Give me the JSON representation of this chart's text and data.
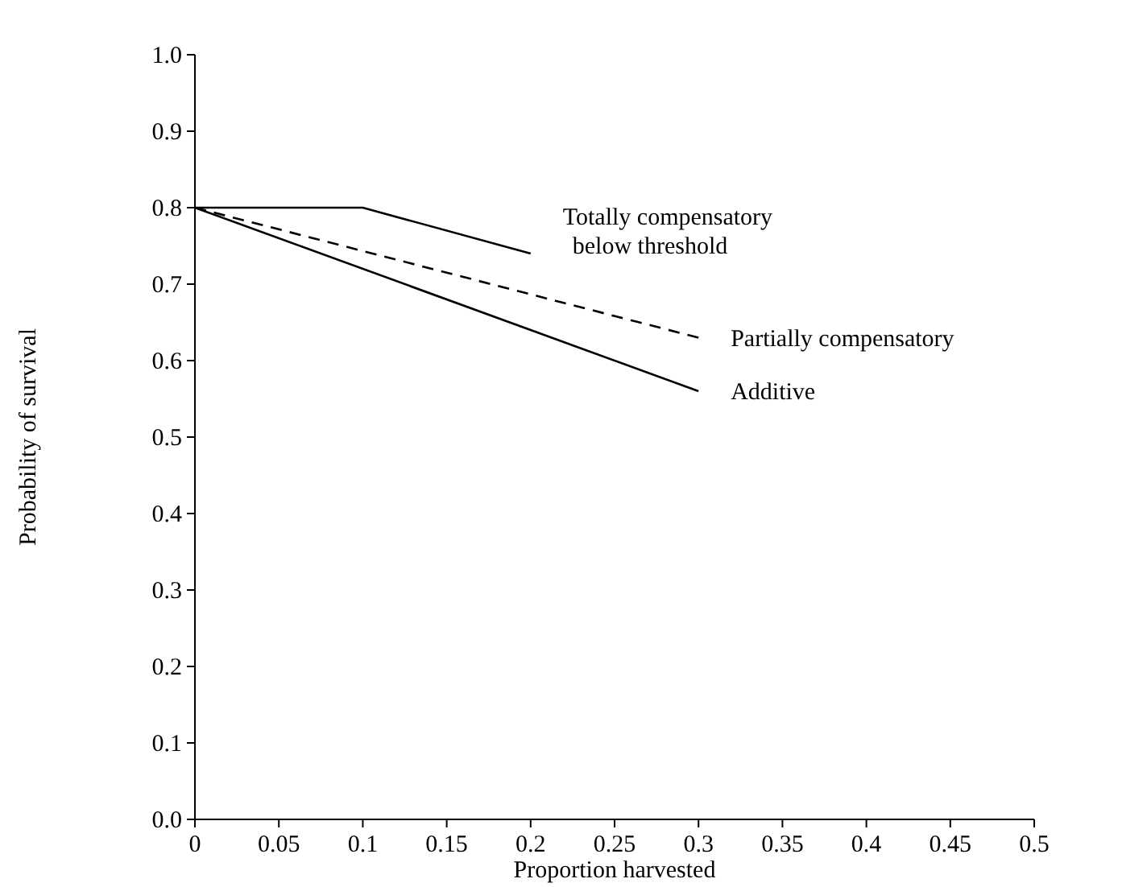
{
  "chart_data": {
    "type": "line",
    "xlabel": "Proportion harvested",
    "ylabel": "Probability of survival",
    "xlim": [
      0,
      0.5
    ],
    "xticks": [
      0,
      0.05,
      0.1,
      0.15,
      0.2,
      0.25,
      0.3,
      0.35,
      0.4,
      0.45,
      0.5
    ],
    "ylim": [
      0,
      1
    ],
    "yticks": [
      {
        "value": 0,
        "label": "0.0"
      },
      0.1,
      0.2,
      0.3,
      0.4,
      0.5,
      0.6,
      0.7,
      0.8,
      0.9,
      {
        "value": 1,
        "label": "1.0"
      }
    ],
    "grid": false,
    "series": [
      {
        "name": "Totally compensatory below threshold",
        "color": "#000000",
        "line_style": "solid",
        "x": [
          0,
          0.1,
          0.2
        ],
        "values": [
          0.8,
          0.8,
          0.74
        ]
      },
      {
        "name": "Partially compensatory",
        "color": "#000000",
        "line_style": "dashed",
        "x": [
          0,
          0.3
        ],
        "values": [
          0.8,
          0.63
        ]
      },
      {
        "name": "Additive",
        "color": "#000000",
        "line_style": "solid",
        "x": [
          0,
          0.3
        ],
        "values": [
          0.8,
          0.56
        ]
      }
    ]
  }
}
